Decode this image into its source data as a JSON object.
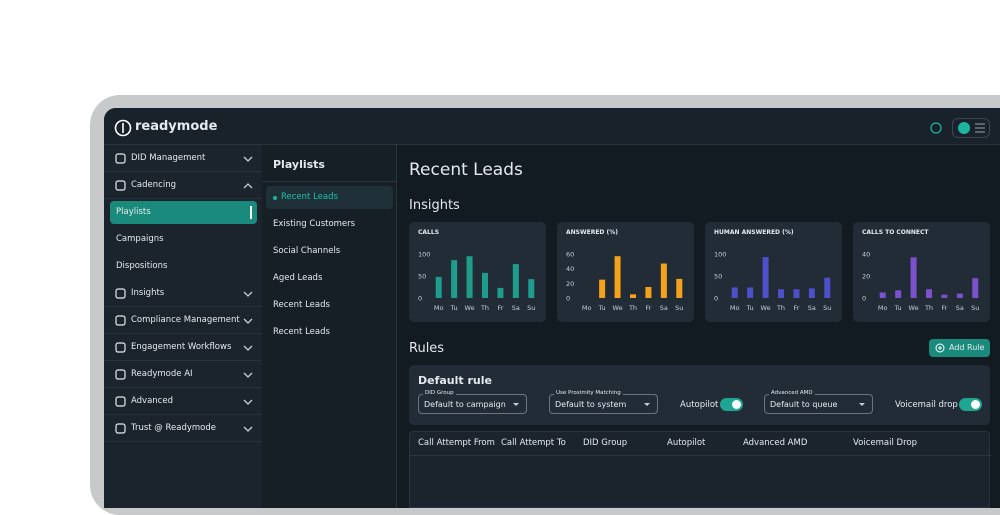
{
  "brand": "readymode",
  "nav": [
    {
      "label": "DID Management"
    },
    {
      "label": "Cadencing",
      "expanded": true,
      "children": [
        {
          "label": "Playlists",
          "selected": true
        },
        {
          "label": "Campaigns"
        },
        {
          "label": "Dispositions"
        }
      ]
    },
    {
      "label": "Insights"
    },
    {
      "label": "Compliance Management"
    },
    {
      "label": "Engagement Workflows"
    },
    {
      "label": "Readymode AI"
    },
    {
      "label": "Advanced"
    },
    {
      "label": "Trust @ Readymode"
    }
  ],
  "subnav": {
    "title": "Playlists",
    "items": [
      {
        "label": "Recent Leads",
        "selected": true
      },
      {
        "label": "Existing Customers"
      },
      {
        "label": "Social Channels"
      },
      {
        "label": "Aged Leads"
      },
      {
        "label": "Recent Leads"
      },
      {
        "label": "Recent Leads"
      }
    ]
  },
  "main": {
    "title": "Recent Leads",
    "insights_title": "Insights",
    "rules_title": "Rules",
    "add_rule": "Add Rule",
    "rule": {
      "title": "Default rule",
      "controls": [
        {
          "kind": "select",
          "label": "DID Group",
          "value": "Default to campaign"
        },
        {
          "kind": "select",
          "label": "Use Proximity Matching",
          "value": "Default to system"
        },
        {
          "kind": "toggle",
          "label": "Autopilot",
          "on": true
        },
        {
          "kind": "select",
          "label": "Advanced AMD",
          "value": "Default to queue"
        },
        {
          "kind": "toggle",
          "label": "Voicemail drop",
          "on": true
        }
      ]
    },
    "table_headers": [
      "Call Attempt From",
      "Call Attempt To",
      "DID Group",
      "Autopilot",
      "Advanced AMD",
      "Voicemail Drop"
    ]
  },
  "chart_data": [
    {
      "type": "bar",
      "title": "CALLS",
      "categories": [
        "Mo",
        "Tu",
        "We",
        "Th",
        "Fr",
        "Sa",
        "Su"
      ],
      "values": [
        48,
        86,
        95,
        57,
        23,
        77,
        43
      ],
      "color": "#1f9c8c",
      "ylim": [
        0,
        100
      ],
      "yticks": [
        0,
        50,
        100
      ]
    },
    {
      "type": "bar",
      "title": "ANSWERED (%)",
      "categories": [
        "Mo",
        "Tu",
        "We",
        "Th",
        "Fr",
        "Sa",
        "Su"
      ],
      "values": [
        0,
        25,
        57,
        5,
        15,
        47,
        26
      ],
      "color": "#f5a21b",
      "ylim": [
        0,
        60
      ],
      "yticks": [
        0,
        20,
        40,
        60
      ]
    },
    {
      "type": "bar",
      "title": "HUMAN ANSWERED (%)",
      "categories": [
        "Mo",
        "Tu",
        "We",
        "Th",
        "Fr",
        "Sa",
        "Su"
      ],
      "values": [
        24,
        24,
        93,
        20,
        20,
        22,
        46
      ],
      "color": "#4d50c8",
      "ylim": [
        0,
        100
      ],
      "yticks": [
        0,
        50,
        100
      ]
    },
    {
      "type": "bar",
      "title": "CALLS TO CONNECT",
      "categories": [
        "Mo",
        "Tu",
        "We",
        "Th",
        "Fr",
        "Sa",
        "Su"
      ],
      "values": [
        5,
        7,
        37,
        8,
        3,
        4,
        18
      ],
      "color": "#7b52cc",
      "ylim": [
        0,
        40
      ],
      "yticks": [
        0,
        20,
        40
      ]
    }
  ]
}
